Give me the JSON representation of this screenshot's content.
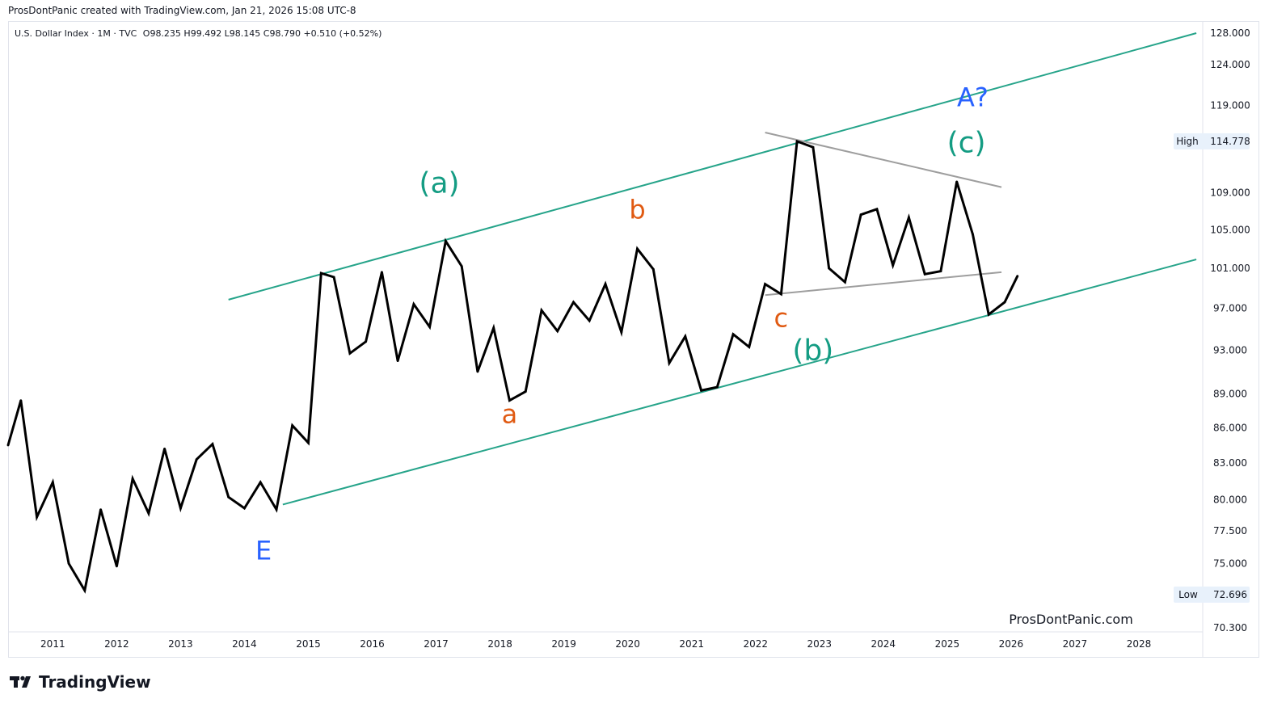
{
  "header": {
    "attribution": "ProsDontPanic created with TradingView.com, Jan 21, 2026 15:08 UTC-8"
  },
  "legend": {
    "symbol": "U.S. Dollar Index · 1M · TVC",
    "ohlc": "O98.235 H99.492 L98.145 C98.790 +0.510 (+0.52%)"
  },
  "watermark": "ProsDontPanic.com",
  "footer": {
    "brand": "TradingView"
  },
  "colors": {
    "price_line": "#000000",
    "channel": "#26a48a",
    "triangle": "#9e9e9e",
    "wave_green": "#149c83",
    "wave_orange": "#e05a12",
    "wave_blue": "#2962ff",
    "tag_bg": "#e8f1fb"
  },
  "chart_data": {
    "type": "line",
    "title": "",
    "xlabel": "",
    "ylabel": "",
    "y_scale": "log",
    "ylim": [
      70.3,
      128.0
    ],
    "xlim": [
      2010.3,
      2029.0
    ],
    "y_ticks": [
      "128.000",
      "124.000",
      "119.000",
      "109.000",
      "105.000",
      "101.000",
      "97.000",
      "93.000",
      "89.000",
      "86.000",
      "83.000",
      "80.000",
      "77.500",
      "75.000",
      "70.300"
    ],
    "x_ticks": [
      "2011",
      "2012",
      "2013",
      "2014",
      "2015",
      "2016",
      "2017",
      "2018",
      "2019",
      "2020",
      "2021",
      "2022",
      "2023",
      "2024",
      "2025",
      "2026",
      "2027",
      "2028"
    ],
    "series": [
      {
        "values": [
          [
            2010.3,
            84.5
          ],
          [
            2010.5,
            88.4
          ],
          [
            2010.75,
            78.6
          ],
          [
            2011.0,
            81.4
          ],
          [
            2011.25,
            75.0
          ],
          [
            2011.5,
            73.0
          ],
          [
            2011.75,
            79.2
          ],
          [
            2012.0,
            74.8
          ],
          [
            2012.25,
            81.7
          ],
          [
            2012.5,
            78.9
          ],
          [
            2012.75,
            84.2
          ],
          [
            2013.0,
            79.3
          ],
          [
            2013.25,
            83.3
          ],
          [
            2013.5,
            84.6
          ],
          [
            2013.75,
            80.2
          ],
          [
            2014.0,
            79.3
          ],
          [
            2014.25,
            81.4
          ],
          [
            2014.5,
            79.2
          ],
          [
            2014.75,
            86.2
          ],
          [
            2015.0,
            84.7
          ],
          [
            2015.2,
            100.5
          ],
          [
            2015.4,
            100.1
          ],
          [
            2015.65,
            92.7
          ],
          [
            2015.9,
            93.8
          ],
          [
            2016.15,
            100.6
          ],
          [
            2016.4,
            92.0
          ],
          [
            2016.65,
            97.4
          ],
          [
            2016.9,
            95.2
          ],
          [
            2017.15,
            103.8
          ],
          [
            2017.4,
            101.2
          ],
          [
            2017.65,
            91.0
          ],
          [
            2017.9,
            95.1
          ],
          [
            2018.15,
            88.4
          ],
          [
            2018.4,
            89.2
          ],
          [
            2018.65,
            96.8
          ],
          [
            2018.9,
            94.8
          ],
          [
            2019.15,
            97.6
          ],
          [
            2019.4,
            95.8
          ],
          [
            2019.65,
            99.4
          ],
          [
            2019.9,
            94.7
          ],
          [
            2020.15,
            103.0
          ],
          [
            2020.4,
            100.9
          ],
          [
            2020.65,
            91.8
          ],
          [
            2020.9,
            94.3
          ],
          [
            2021.15,
            89.3
          ],
          [
            2021.4,
            89.6
          ],
          [
            2021.65,
            94.5
          ],
          [
            2021.9,
            93.3
          ],
          [
            2022.15,
            99.4
          ],
          [
            2022.4,
            98.4
          ],
          [
            2022.65,
            114.778
          ],
          [
            2022.9,
            114.1
          ],
          [
            2023.15,
            101.0
          ],
          [
            2023.4,
            99.6
          ],
          [
            2023.65,
            106.6
          ],
          [
            2023.9,
            107.2
          ],
          [
            2024.15,
            101.3
          ],
          [
            2024.4,
            106.3
          ],
          [
            2024.65,
            100.4
          ],
          [
            2024.9,
            100.7
          ],
          [
            2025.15,
            110.2
          ],
          [
            2025.4,
            104.5
          ],
          [
            2025.65,
            96.4
          ],
          [
            2025.9,
            97.6
          ],
          [
            2026.1,
            100.2
          ]
        ]
      }
    ],
    "high_label": "High",
    "high_value": "114.778",
    "low_label": "Low",
    "low_value": "72.696",
    "channel_lines": [
      [
        [
          2013.75,
          97.85
        ],
        [
          2028.9,
          128.0
        ]
      ],
      [
        [
          2014.6,
          79.6
        ],
        [
          2028.9,
          101.9
        ]
      ]
    ],
    "triangle_lines": [
      [
        [
          2022.15,
          115.8
        ],
        [
          2025.85,
          109.6
        ]
      ],
      [
        [
          2022.15,
          98.3
        ],
        [
          2025.85,
          100.6
        ]
      ]
    ],
    "annotations": [
      {
        "text": "(a)",
        "x": 2017.05,
        "y": 109.0,
        "color": "wave_green",
        "size": 36
      },
      {
        "text": "b",
        "x": 2020.15,
        "y": 106.2,
        "color": "wave_orange",
        "size": 32
      },
      {
        "text": "a",
        "x": 2018.15,
        "y": 86.4,
        "color": "wave_orange",
        "size": 32
      },
      {
        "text": "E",
        "x": 2014.3,
        "y": 75.3,
        "color": "wave_blue",
        "size": 32
      },
      {
        "text": "c",
        "x": 2022.4,
        "y": 95.2,
        "color": "wave_orange",
        "size": 32
      },
      {
        "text": "(b)",
        "x": 2022.9,
        "y": 92.1,
        "color": "wave_green",
        "size": 36
      },
      {
        "text": "(c)",
        "x": 2025.3,
        "y": 113.5,
        "color": "wave_green",
        "size": 36
      },
      {
        "text": "A?",
        "x": 2025.4,
        "y": 118.9,
        "color": "wave_blue",
        "size": 32
      }
    ]
  }
}
